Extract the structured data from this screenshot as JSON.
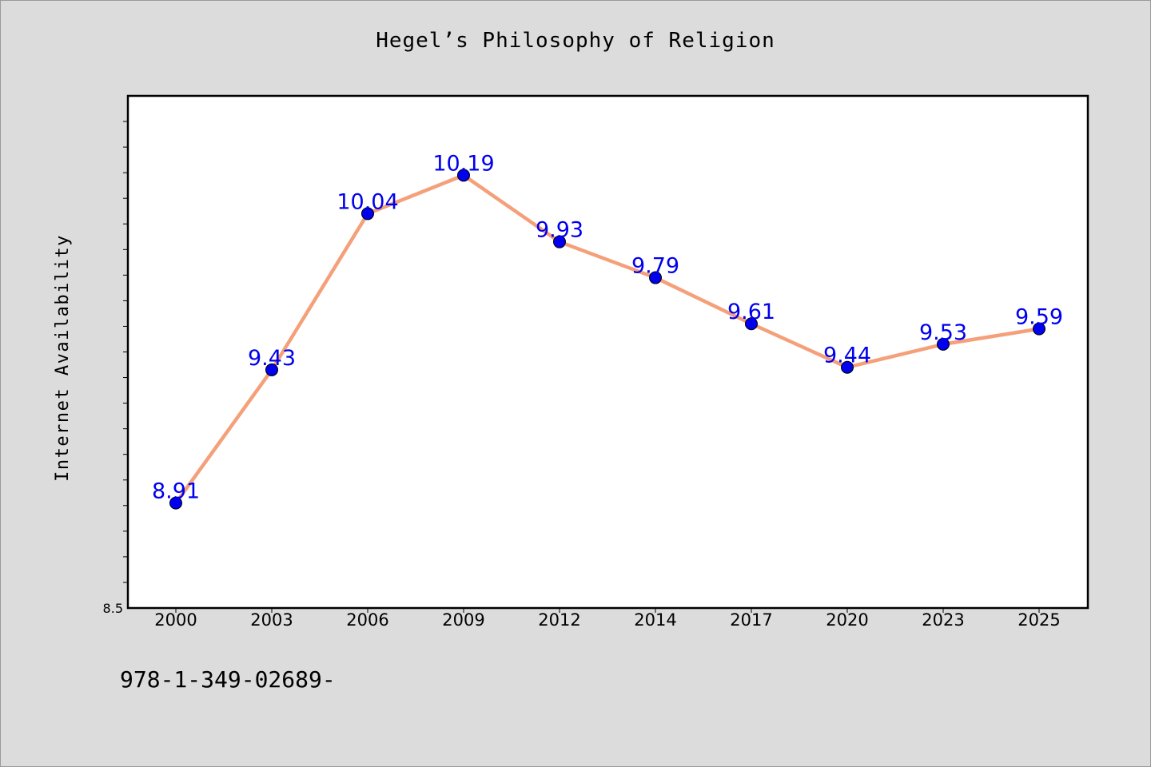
{
  "chart_data": {
    "type": "line",
    "title": "Hegel’s Philosophy of Religion",
    "xlabel": "",
    "ylabel": "Internet Availability",
    "x": [
      "2000",
      "2003",
      "2006",
      "2009",
      "2012",
      "2014",
      "2017",
      "2020",
      "2023",
      "2025"
    ],
    "series": [
      {
        "values": [
          8.91,
          9.43,
          10.04,
          10.19,
          9.93,
          9.79,
          9.61,
          9.44,
          9.53,
          9.59
        ]
      }
    ],
    "data_labels": [
      "8.91",
      "9.43",
      "10.04",
      "10.19",
      "9.93",
      "9.79",
      "9.61",
      "9.44",
      "9.53",
      "9.59"
    ],
    "ylim": [
      8.5,
      10.5
    ],
    "y_tick_labels": [
      "8.5"
    ],
    "grid": false,
    "line_color": "#f4a07a",
    "marker_color": "#0000ee",
    "label_color": "#0000ee"
  },
  "footer": {
    "code": "978-1-349-02689-"
  }
}
